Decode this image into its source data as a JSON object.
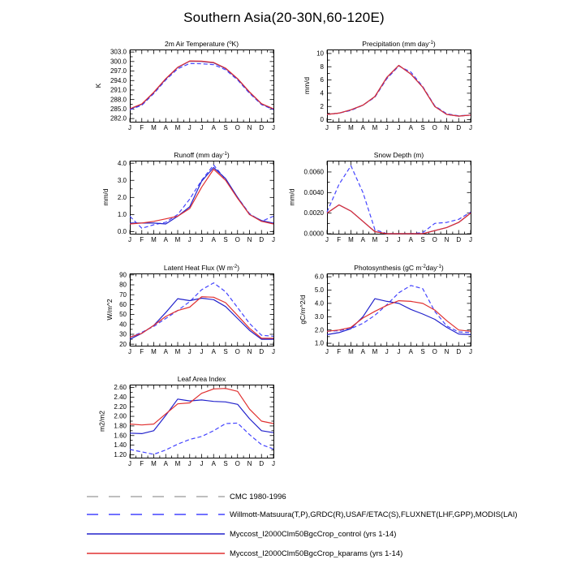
{
  "page": {
    "title": "Southern Asia(20-30N,60-120E)",
    "background": "#ffffff"
  },
  "colors": {
    "axis": "#000000",
    "cmc": "#a8a8a8",
    "obs": "#4444ff",
    "control": "#2222cc",
    "kparams": "#e03030"
  },
  "months": [
    "J",
    "F",
    "M",
    "A",
    "M",
    "J",
    "J",
    "A",
    "S",
    "O",
    "N",
    "D",
    "J"
  ],
  "legend": [
    {
      "label": "CMC 1980-1996",
      "color": "#a8a8a8",
      "style": "dashed"
    },
    {
      "label": "Willmott-Matsuura(T,P),GRDC(R),USAF/ETAC(S),FLUXNET(LHF,GPP),MODIS(LAI)",
      "color": "#4444ff",
      "style": "dashed"
    },
    {
      "label": "Myccost_I2000Clm50BgcCrop_control (yrs 1-14)",
      "color": "#2222cc",
      "style": "solid"
    },
    {
      "label": "Myccost_I2000Clm50BgcCrop_kparams (yrs 1-14)",
      "color": "#e03030",
      "style": "solid"
    }
  ],
  "chart_data": [
    {
      "type": "line",
      "name": "air-temperature",
      "title_parts": [
        {
          "t": "2m Air Temperature (",
          "sup": false
        },
        {
          "t": "o",
          "sup": true
        },
        {
          "t": "K)",
          "sup": false
        }
      ],
      "ylabel": "K",
      "ylim": [
        281.0,
        303.8
      ],
      "ytick_values": [
        282.0,
        285.0,
        288.0,
        291.0,
        294.0,
        297.0,
        300.0,
        303.0
      ],
      "ytick_labels": [
        "282.0",
        "285.0",
        "288.0",
        "291.0",
        "294.0",
        "297.0",
        "300.0",
        "303.0"
      ],
      "series": [
        {
          "name": "obs",
          "color": "#4444ff",
          "dashed": true,
          "values": [
            284.8,
            286.2,
            289.9,
            294.2,
            297.7,
            299.4,
            299.3,
            299.0,
            297.4,
            294.2,
            290.0,
            286.4,
            284.8
          ]
        },
        {
          "name": "control",
          "color": "#2222cc",
          "dashed": false,
          "values": [
            285.0,
            286.5,
            290.2,
            294.5,
            298.1,
            300.1,
            300.0,
            299.6,
            297.8,
            294.5,
            290.3,
            286.6,
            285.0
          ]
        },
        {
          "name": "kparams",
          "color": "#e03030",
          "dashed": false,
          "values": [
            285.1,
            286.6,
            290.3,
            294.6,
            298.2,
            300.2,
            300.1,
            299.7,
            297.9,
            294.6,
            290.4,
            286.7,
            285.1
          ]
        }
      ]
    },
    {
      "type": "line",
      "name": "precipitation",
      "title_parts": [
        {
          "t": "Precipitation (mm day",
          "sup": false
        },
        {
          "t": "-1",
          "sup": true
        },
        {
          "t": ")",
          "sup": false
        }
      ],
      "ylabel": "mm/d",
      "ylim": [
        -0.3,
        10.6
      ],
      "ytick_values": [
        0,
        2,
        4,
        6,
        8,
        10
      ],
      "ytick_labels": [
        "0",
        "2",
        "4",
        "6",
        "8",
        "10"
      ],
      "series": [
        {
          "name": "obs",
          "color": "#4444ff",
          "dashed": true,
          "values": [
            0.8,
            1.0,
            1.4,
            2.2,
            3.4,
            6.2,
            8.1,
            7.2,
            5.0,
            2.1,
            0.9,
            0.6,
            0.7
          ]
        },
        {
          "name": "control",
          "color": "#2222cc",
          "dashed": false,
          "values": [
            0.8,
            1.0,
            1.5,
            2.2,
            3.5,
            6.4,
            8.2,
            6.9,
            4.9,
            2.0,
            0.8,
            0.55,
            0.7
          ]
        },
        {
          "name": "kparams",
          "color": "#e03030",
          "dashed": false,
          "values": [
            0.8,
            1.0,
            1.5,
            2.2,
            3.5,
            6.4,
            8.2,
            6.9,
            4.9,
            2.0,
            0.8,
            0.55,
            0.7
          ]
        }
      ]
    },
    {
      "type": "line",
      "name": "runoff",
      "title_parts": [
        {
          "t": "Runoff (mm day",
          "sup": false
        },
        {
          "t": "-1",
          "sup": true
        },
        {
          "t": ")",
          "sup": false
        }
      ],
      "ylabel": "mm/d",
      "ylim": [
        -0.12,
        4.15
      ],
      "ytick_values": [
        0.0,
        1.0,
        2.0,
        3.0,
        4.0
      ],
      "ytick_labels": [
        "0.0",
        "1.0",
        "2.0",
        "3.0",
        "4.0"
      ],
      "series": [
        {
          "name": "obs",
          "color": "#4444ff",
          "dashed": true,
          "values": [
            0.9,
            0.2,
            0.4,
            0.55,
            1.0,
            1.9,
            3.0,
            3.9,
            3.05,
            2.0,
            1.05,
            0.6,
            0.9
          ]
        },
        {
          "name": "control",
          "color": "#2222cc",
          "dashed": false,
          "values": [
            0.5,
            0.5,
            0.5,
            0.45,
            0.9,
            1.45,
            2.95,
            3.75,
            3.1,
            2.0,
            1.0,
            0.65,
            0.5
          ]
        },
        {
          "name": "kparams",
          "color": "#e03030",
          "dashed": false,
          "values": [
            0.45,
            0.5,
            0.6,
            0.75,
            0.9,
            1.35,
            2.6,
            3.65,
            3.0,
            1.95,
            1.0,
            0.6,
            0.45
          ]
        }
      ]
    },
    {
      "type": "line",
      "name": "snow-depth",
      "title_parts": [
        {
          "t": "Snow Depth (m)",
          "sup": false
        }
      ],
      "ylabel": "mm/d",
      "ylim": [
        0.0,
        0.0071
      ],
      "ytick_values": [
        0.0,
        0.002,
        0.004,
        0.006
      ],
      "ytick_labels": [
        "0.0000",
        "0.0020",
        "0.0040",
        "0.0060"
      ],
      "series": [
        {
          "name": "obs",
          "color": "#4444ff",
          "dashed": true,
          "values": [
            0.0021,
            0.0048,
            0.0066,
            0.004,
            0.0004,
            0.0,
            0.0,
            0.0,
            0.0001,
            0.001,
            0.0011,
            0.0014,
            0.0021
          ]
        },
        {
          "name": "control",
          "color": "#2222cc",
          "dashed": false,
          "values": [
            0.002,
            0.0028,
            0.0022,
            0.0012,
            0.0002,
            0.0,
            0.0,
            0.0,
            0.0,
            0.0003,
            0.0006,
            0.0011,
            0.002
          ]
        },
        {
          "name": "kparams",
          "color": "#e03030",
          "dashed": false,
          "values": [
            0.002,
            0.0028,
            0.0022,
            0.0012,
            0.0002,
            0.0,
            0.0,
            0.0,
            0.0,
            0.0003,
            0.0006,
            0.0011,
            0.002
          ]
        }
      ]
    },
    {
      "type": "line",
      "name": "latent-heat-flux",
      "title_parts": [
        {
          "t": "Latent Heat Flux (W m",
          "sup": false
        },
        {
          "t": "-2",
          "sup": true
        },
        {
          "t": ")",
          "sup": false
        }
      ],
      "ylabel": "W/m^2",
      "ylim": [
        18.5,
        91.5
      ],
      "ytick_values": [
        20,
        30,
        40,
        50,
        60,
        70,
        80,
        90
      ],
      "ytick_labels": [
        "20",
        "30",
        "40",
        "50",
        "60",
        "70",
        "80",
        "90"
      ],
      "series": [
        {
          "name": "obs",
          "color": "#4444ff",
          "dashed": true,
          "values": [
            27,
            32,
            38,
            46,
            54,
            63,
            75,
            82,
            73,
            57,
            41,
            29,
            28
          ]
        },
        {
          "name": "control",
          "color": "#2222cc",
          "dashed": false,
          "values": [
            25,
            31,
            39,
            52,
            66,
            64,
            66.5,
            65,
            58,
            46,
            34,
            25,
            25
          ]
        },
        {
          "name": "kparams",
          "color": "#e03030",
          "dashed": false,
          "values": [
            27,
            31,
            39,
            48,
            54,
            57.5,
            68,
            67.5,
            62,
            49,
            36,
            26,
            26
          ]
        }
      ]
    },
    {
      "type": "line",
      "name": "photosynthesis",
      "title_parts": [
        {
          "t": "Photosynthesis (gC m",
          "sup": false
        },
        {
          "t": "-2",
          "sup": true
        },
        {
          "t": "day",
          "sup": false
        },
        {
          "t": "-1",
          "sup": true
        },
        {
          "t": ")",
          "sup": false
        }
      ],
      "ylabel": "gC/m^2/d",
      "ylim": [
        0.82,
        6.25
      ],
      "ytick_values": [
        1.0,
        2.0,
        3.0,
        4.0,
        5.0,
        6.0
      ],
      "ytick_labels": [
        "1.0",
        "2.0",
        "3.0",
        "4.0",
        "5.0",
        "6.0"
      ],
      "series": [
        {
          "name": "obs",
          "color": "#4444ff",
          "dashed": true,
          "values": [
            1.9,
            1.95,
            2.1,
            2.5,
            3.1,
            3.9,
            4.8,
            5.35,
            5.1,
            3.4,
            2.3,
            1.85,
            1.8
          ]
        },
        {
          "name": "control",
          "color": "#2222cc",
          "dashed": false,
          "values": [
            1.65,
            1.8,
            2.1,
            3.0,
            4.35,
            4.15,
            4.0,
            3.55,
            3.2,
            2.8,
            2.2,
            1.7,
            1.65
          ]
        },
        {
          "name": "kparams",
          "color": "#e03030",
          "dashed": false,
          "values": [
            1.9,
            2.0,
            2.2,
            2.9,
            3.4,
            3.85,
            4.2,
            4.15,
            4.0,
            3.5,
            2.7,
            2.0,
            1.9
          ]
        }
      ]
    },
    {
      "type": "line",
      "name": "leaf-area-index",
      "title_parts": [
        {
          "t": "Leaf Area Index",
          "sup": false
        }
      ],
      "ylabel": "m2/m2",
      "ylim": [
        1.14,
        2.66
      ],
      "ytick_values": [
        1.2,
        1.4,
        1.6,
        1.8,
        2.0,
        2.2,
        2.4,
        2.6
      ],
      "ytick_labels": [
        "1.20",
        "1.40",
        "1.60",
        "1.80",
        "2.00",
        "2.20",
        "2.40",
        "2.60"
      ],
      "series": [
        {
          "name": "obs",
          "color": "#4444ff",
          "dashed": true,
          "values": [
            1.31,
            1.26,
            1.21,
            1.3,
            1.42,
            1.52,
            1.58,
            1.7,
            1.85,
            1.86,
            1.62,
            1.41,
            1.32
          ]
        },
        {
          "name": "control",
          "color": "#2222cc",
          "dashed": false,
          "values": [
            1.65,
            1.64,
            1.7,
            2.02,
            2.36,
            2.32,
            2.34,
            2.31,
            2.3,
            2.25,
            1.95,
            1.7,
            1.66
          ]
        },
        {
          "name": "kparams",
          "color": "#e03030",
          "dashed": false,
          "values": [
            1.84,
            1.82,
            1.84,
            2.05,
            2.26,
            2.28,
            2.48,
            2.57,
            2.58,
            2.52,
            2.15,
            1.9,
            1.85
          ]
        }
      ]
    }
  ]
}
